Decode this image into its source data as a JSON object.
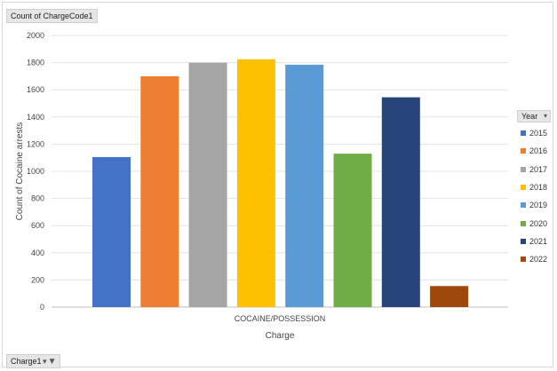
{
  "field_buttons": {
    "value_field": "Count of ChargeCode1",
    "filter_field": "Charge1"
  },
  "legend": {
    "header": "Year"
  },
  "icons": {
    "filter": "funnel-icon",
    "dropdown": "dropdown-arrow-icon"
  },
  "chart_data": {
    "type": "bar",
    "categories": [
      "COCAINE/POSSESSION"
    ],
    "xlabel": "Charge",
    "ylabel": "Count of Cocaine arrests",
    "ylim": [
      0,
      2000
    ],
    "yticks": [
      0,
      200,
      400,
      600,
      800,
      1000,
      1200,
      1400,
      1600,
      1800,
      2000
    ],
    "grid": true,
    "legend_position": "right",
    "series": [
      {
        "name": "2015",
        "values": [
          1105
        ],
        "color": "#4472C4"
      },
      {
        "name": "2016",
        "values": [
          1700
        ],
        "color": "#ED7D31"
      },
      {
        "name": "2017",
        "values": [
          1800
        ],
        "color": "#A5A5A5"
      },
      {
        "name": "2018",
        "values": [
          1825
        ],
        "color": "#FFC000"
      },
      {
        "name": "2019",
        "values": [
          1785
        ],
        "color": "#5B9BD5"
      },
      {
        "name": "2020",
        "values": [
          1130
        ],
        "color": "#70AD47"
      },
      {
        "name": "2021",
        "values": [
          1545
        ],
        "color": "#264478"
      },
      {
        "name": "2022",
        "values": [
          155
        ],
        "color": "#9E480E"
      }
    ]
  }
}
